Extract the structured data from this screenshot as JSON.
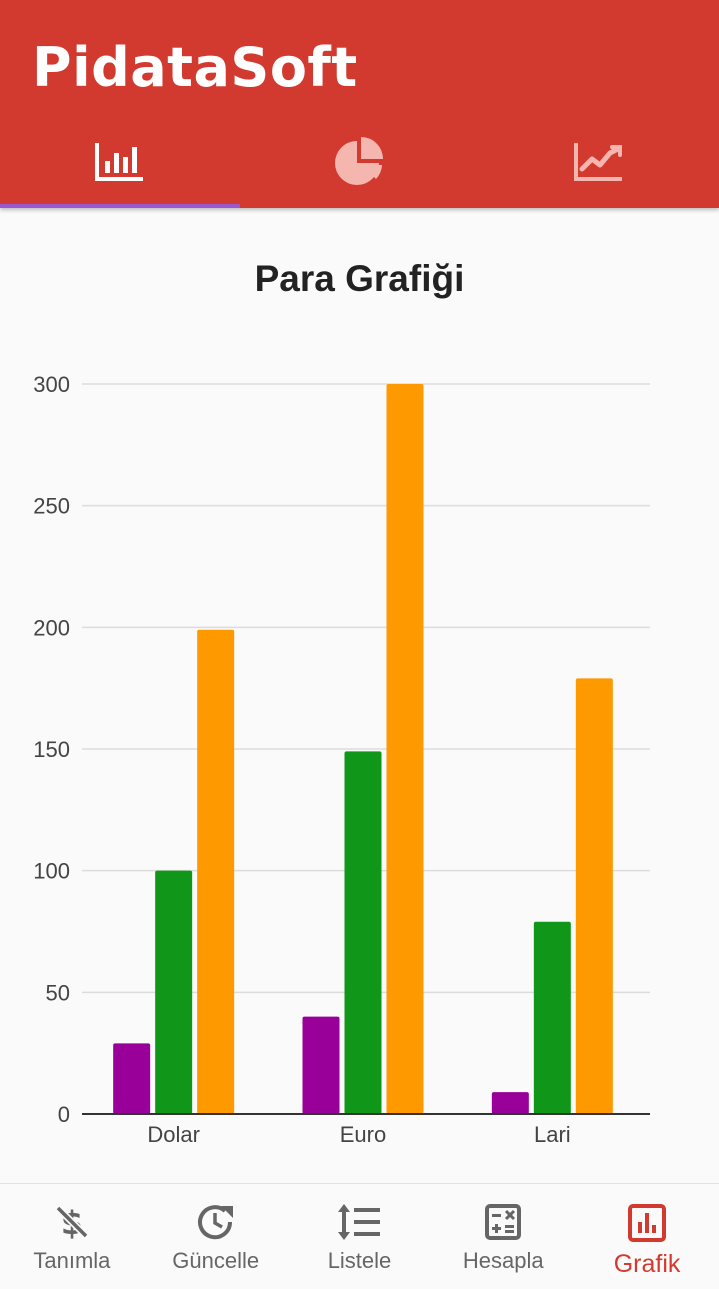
{
  "app": {
    "title": "PidataSoft"
  },
  "colors": {
    "appbar": "#d33a2f",
    "indicator": "#9b59d0",
    "active": "#d33a2f",
    "inactive": "#666666",
    "tab_active_icon": "#ffffff",
    "tab_inactive_icon": "#f6b6b0"
  },
  "tabs": [
    {
      "icon": "bar-chart-icon",
      "active": true
    },
    {
      "icon": "pie-chart-icon",
      "active": false
    },
    {
      "icon": "line-chart-icon",
      "active": false
    }
  ],
  "chart_data": {
    "type": "bar",
    "title": "Para Grafiği",
    "categories": [
      "Dolar",
      "Euro",
      "Lari"
    ],
    "series": [
      {
        "color": "#990099",
        "values": [
          29,
          40,
          9
        ]
      },
      {
        "color": "#109618",
        "values": [
          100,
          149,
          79
        ]
      },
      {
        "color": "#ff9900",
        "values": [
          199,
          300,
          179
        ]
      }
    ],
    "ylim": [
      0,
      300
    ],
    "yticks": [
      0,
      50,
      100,
      150,
      200,
      250,
      300
    ],
    "grid": true
  },
  "bottom_nav": [
    {
      "label": "Tanımla",
      "icon": "money-off-icon",
      "active": false
    },
    {
      "label": "Güncelle",
      "icon": "update-icon",
      "active": false
    },
    {
      "label": "Listele",
      "icon": "list-icon",
      "active": false
    },
    {
      "label": "Hesapla",
      "icon": "calculator-icon",
      "active": false
    },
    {
      "label": "Grafik",
      "icon": "chart-icon",
      "active": true
    }
  ]
}
